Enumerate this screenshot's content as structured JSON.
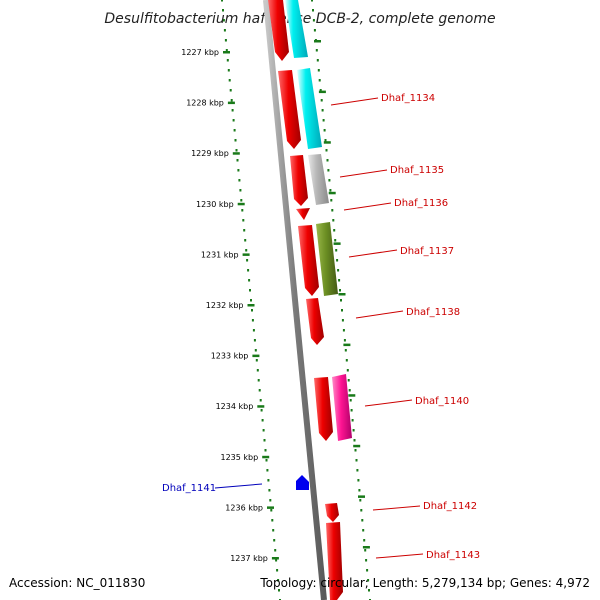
{
  "title": "Desulfitobacterium hafniense DCB-2, complete genome",
  "footer": {
    "accession": "Accession: NC_011830",
    "summary": "Topology: circular; Length: 5,279,134 bp; Genes: 4,972"
  },
  "colors": {
    "strand_arrow": "#ee0000",
    "backbone": "#888888",
    "tick_dots": "#1a7a1a",
    "label_forward": "#cc0000",
    "label_reverse": "#0000bb",
    "blue_gene": "#0000ee"
  },
  "kbp_ticks": [
    "1227 kbp",
    "1228 kbp",
    "1229 kbp",
    "1230 kbp",
    "1231 kbp",
    "1232 kbp",
    "1233 kbp",
    "1234 kbp",
    "1235 kbp",
    "1236 kbp",
    "1237 kbp"
  ],
  "genes": [
    {
      "id": "g-top",
      "color": "#00e5e5",
      "label": ""
    },
    {
      "id": "g1134",
      "color": "#00e5e5",
      "label": "Dhaf_1134"
    },
    {
      "id": "g1135",
      "color": "#b0b0b0",
      "label": "Dhaf_1135"
    },
    {
      "id": "g1136",
      "color": "#ee0000",
      "label": "Dhaf_1136"
    },
    {
      "id": "g1137",
      "color": "#6b8e23",
      "label": "Dhaf_1137"
    },
    {
      "id": "g1138",
      "color": "#ee0000",
      "label": "Dhaf_1138"
    },
    {
      "id": "g1140",
      "color": "#ff1493",
      "label": "Dhaf_1140"
    },
    {
      "id": "g1141",
      "color": "#0000ee",
      "label": "Dhaf_1141"
    },
    {
      "id": "g1142",
      "color": "#ee0000",
      "label": "Dhaf_1142"
    },
    {
      "id": "g1143",
      "color": "#ee0000",
      "label": "Dhaf_1143"
    }
  ]
}
